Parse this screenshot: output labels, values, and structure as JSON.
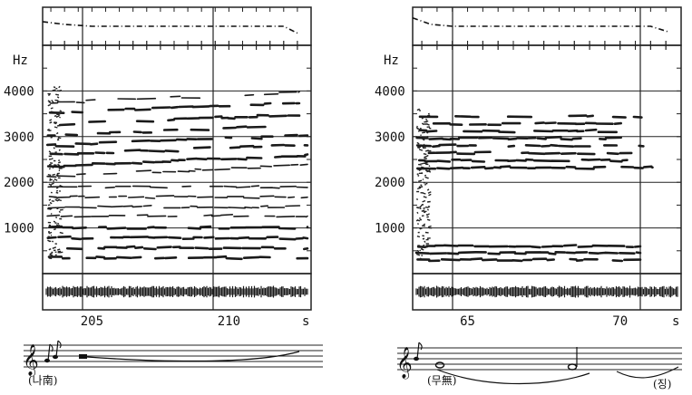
{
  "chart_data": [
    {
      "type": "spectrogram",
      "ylabel": "Hz",
      "y_ticks": [
        1000,
        2000,
        3000,
        4000
      ],
      "x_ticks": [
        {
          "label": "205",
          "t": 205
        },
        {
          "label": "210",
          "t": 210
        }
      ],
      "x_unit": "s",
      "trange": [
        203.2,
        213.0
      ],
      "ylim": [
        0,
        5000
      ],
      "harmonics_hz": [
        350,
        560,
        780,
        1000,
        1260,
        1460,
        1680,
        1900,
        2140,
        2360,
        2600,
        2800,
        3020,
        3260,
        3520,
        3740
      ],
      "pitch_track": [
        [
          203.2,
          0.62
        ],
        [
          204.0,
          0.55
        ],
        [
          205.0,
          0.5
        ],
        [
          212.0,
          0.5
        ],
        [
          212.5,
          0.32
        ]
      ],
      "lyric": "(나南)",
      "notation": "treble clef, short grace notes, long held note with slur"
    },
    {
      "type": "spectrogram",
      "ylabel": "Hz",
      "y_ticks": [
        1000,
        2000,
        3000,
        4000
      ],
      "x_ticks": [
        {
          "label": "65",
          "t": 65
        },
        {
          "label": "70",
          "t": 70
        }
      ],
      "x_unit": "s",
      "trange": [
        63.2,
        72.0
      ],
      "ylim": [
        0,
        5000
      ],
      "harmonics_hz": [
        300,
        450,
        600,
        2320,
        2480,
        2640,
        2800,
        2960,
        3120,
        3280,
        3440
      ],
      "pitch_track": [
        [
          63.2,
          0.72
        ],
        [
          63.8,
          0.55
        ],
        [
          64.5,
          0.5
        ],
        [
          71.0,
          0.5
        ],
        [
          71.6,
          0.35
        ]
      ],
      "lyric_1": "(무無)",
      "lyric_2": "(징)",
      "notation": "treble clef, grace notes, two held notes with slur"
    }
  ]
}
